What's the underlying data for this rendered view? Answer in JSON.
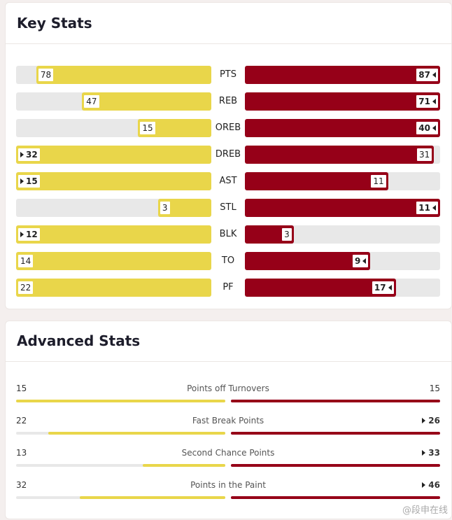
{
  "key_stats": {
    "title": "Key Stats",
    "rows": [
      {
        "label": "PTS",
        "left": 78,
        "right": 87,
        "highlight": "right"
      },
      {
        "label": "REB",
        "left": 47,
        "right": 71,
        "highlight": "right"
      },
      {
        "label": "OREB",
        "left": 15,
        "right": 40,
        "highlight": "right"
      },
      {
        "label": "DREB",
        "left": 32,
        "right": 31,
        "highlight": "left"
      },
      {
        "label": "AST",
        "left": 15,
        "right": 11,
        "highlight": "left"
      },
      {
        "label": "STL",
        "left": 3,
        "right": 11,
        "highlight": "right"
      },
      {
        "label": "BLK",
        "left": 12,
        "right": 3,
        "highlight": "left"
      },
      {
        "label": "TO",
        "left": 14,
        "right": 9,
        "highlight": "right"
      },
      {
        "label": "PF",
        "left": 22,
        "right": 17,
        "highlight": "right"
      }
    ]
  },
  "advanced_stats": {
    "title": "Advanced Stats",
    "rows": [
      {
        "label": "Points off Turnovers",
        "left": 15,
        "right": 15,
        "highlight": null
      },
      {
        "label": "Fast Break Points",
        "left": 22,
        "right": 26,
        "highlight": "right"
      },
      {
        "label": "Second Chance Points",
        "left": 13,
        "right": 33,
        "highlight": "right"
      },
      {
        "label": "Points in the Paint",
        "left": 32,
        "right": 46,
        "highlight": "right"
      }
    ]
  },
  "colors": {
    "left": "#e9d64a",
    "right": "#960018"
  },
  "watermark": "@段申在线"
}
